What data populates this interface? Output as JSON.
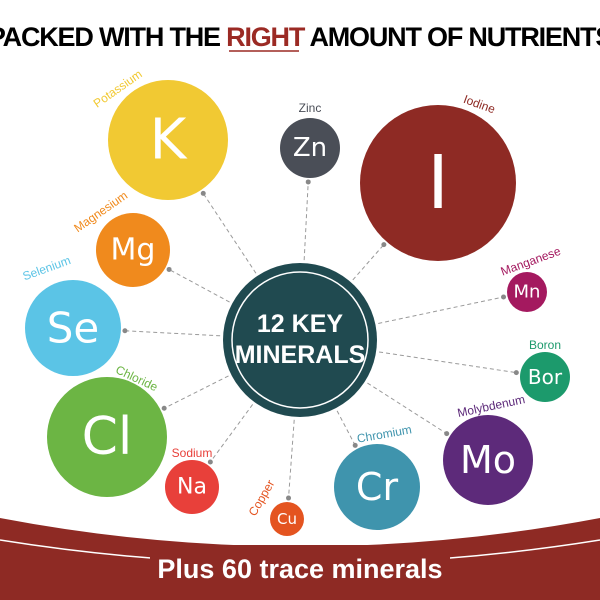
{
  "title": {
    "before": "PACKED WITH THE ",
    "highlight": "RIGHT",
    "after": " AMOUNT OF NUTRIENTS",
    "highlight_color": "#9b2a24"
  },
  "center": {
    "line1": "12 KEY",
    "line2": "MINERALS",
    "color": "#204a50"
  },
  "minerals": [
    {
      "symbol": "K",
      "name": "Potassium",
      "color": "#f1c933"
    },
    {
      "symbol": "Zn",
      "name": "Zinc",
      "color": "#4a4e57"
    },
    {
      "symbol": "I",
      "name": "Iodine",
      "color": "#8e2a24"
    },
    {
      "symbol": "Mg",
      "name": "Magnesium",
      "color": "#f08a1d"
    },
    {
      "symbol": "Se",
      "name": "Selenium",
      "color": "#5bc4e6"
    },
    {
      "symbol": "Mn",
      "name": "Manganese",
      "color": "#a4195f"
    },
    {
      "symbol": "Bor",
      "name": "Boron",
      "color": "#1c9a6c"
    },
    {
      "symbol": "Cl",
      "name": "Chloride",
      "color": "#6cb544"
    },
    {
      "symbol": "Na",
      "name": "Sodium",
      "color": "#e8403a"
    },
    {
      "symbol": "Cu",
      "name": "Copper",
      "color": "#e45420"
    },
    {
      "symbol": "Cr",
      "name": "Chromium",
      "color": "#3f94ad"
    },
    {
      "symbol": "Mo",
      "name": "Molybdenum",
      "color": "#5d2a7a"
    }
  ],
  "footer": {
    "text": "Plus 60 trace minerals",
    "color": "#8e2a24"
  }
}
